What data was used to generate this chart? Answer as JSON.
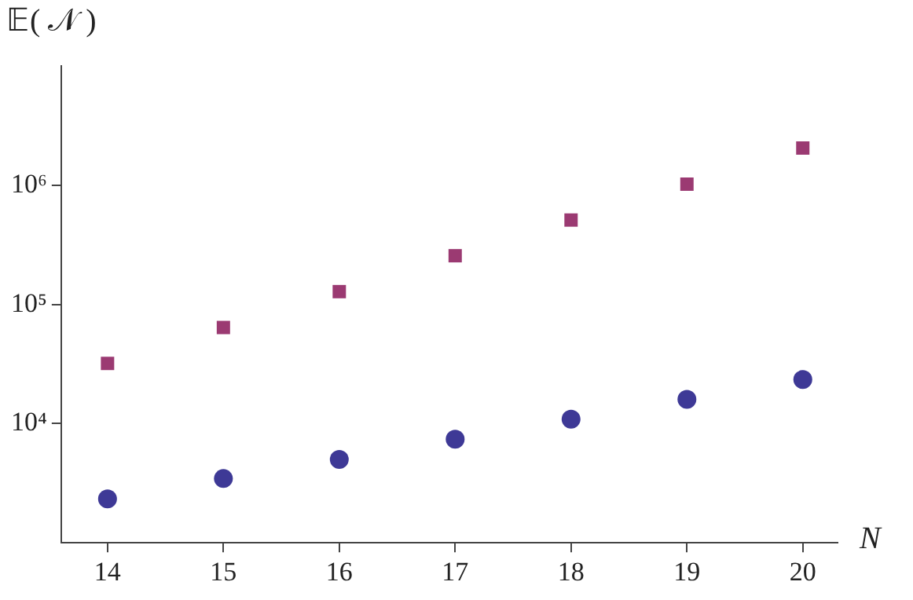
{
  "chart_data": {
    "type": "scatter",
    "xlabel": "N",
    "ylabel": "𝔼( 𝒩 )",
    "x": [
      14,
      15,
      16,
      17,
      18,
      19,
      20
    ],
    "series": [
      {
        "color": "#9b3a72",
        "marker": "square",
        "values": [
          32000,
          64000,
          128000,
          256000,
          510000,
          1020000,
          2050000
        ]
      },
      {
        "color": "#3e3996",
        "marker": "circle",
        "values": [
          2340,
          3460,
          5000,
          7400,
          10900,
          16000,
          23400
        ]
      }
    ],
    "log": "y",
    "ylim": [
      1000,
      10000000
    ],
    "xlim": [
      13.6,
      20.3
    ],
    "xticks": [
      14,
      15,
      16,
      17,
      18,
      19,
      20
    ],
    "yticks": [
      {
        "value": 10000,
        "label": "10⁴"
      },
      {
        "value": 100000,
        "label": "10⁵"
      },
      {
        "value": 1000000,
        "label": "10⁶"
      }
    ],
    "grid": false,
    "legend": false
  }
}
